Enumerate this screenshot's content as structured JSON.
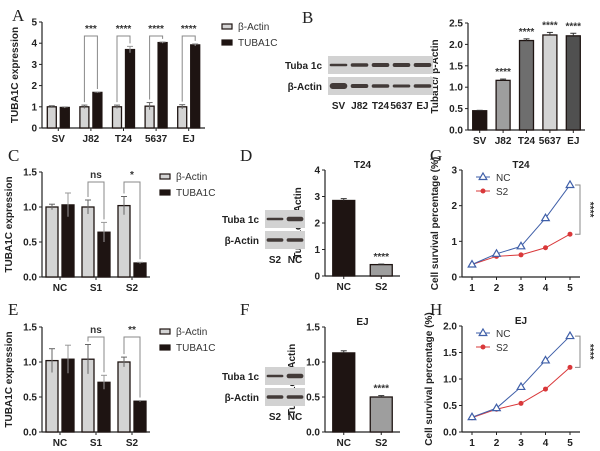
{
  "panel_labels": {
    "A": "A",
    "B": "B",
    "C": "C",
    "D": "D",
    "E": "E",
    "F": "F",
    "G": "G",
    "H": "H"
  },
  "colors": {
    "actin_fill": "#d4d4d4",
    "tuba_fill": "#1e1412",
    "nc_line": "#3f5fa8",
    "s2_line": "#d9383a",
    "dark_bar": "#1e1412",
    "mid_gray": "#9a9a9a"
  },
  "chart_data": [
    {
      "id": "A",
      "type": "bar",
      "title": "",
      "ylabel": "TUBA1C expression",
      "xlabel": "",
      "ylim": [
        0,
        5
      ],
      "yticks": [
        "0",
        "1",
        "2",
        "3",
        "4",
        "5"
      ],
      "categories": [
        "SV",
        "J82",
        "T24",
        "5637",
        "EJ"
      ],
      "series": [
        {
          "name": "β-Actin",
          "values": [
            1.0,
            1.0,
            1.0,
            1.03,
            1.0
          ],
          "errors": [
            0.05,
            0.08,
            0.08,
            0.17,
            0.1
          ]
        },
        {
          "name": "TUBA1C",
          "values": [
            0.97,
            1.68,
            3.7,
            4.03,
            3.92
          ],
          "errors": [
            0.03,
            0.02,
            0.15,
            0.03,
            0.05
          ]
        }
      ],
      "significance": [
        "",
        "***",
        "****",
        "****",
        "****"
      ],
      "legend": [
        "β-Actin",
        "TUBA1C"
      ],
      "legend_position": "right"
    },
    {
      "id": "B",
      "type": "bar",
      "title": "",
      "ylabel": "Tuba1c/ β-Actin",
      "xlabel": "",
      "ylim": [
        0,
        2.5
      ],
      "yticks": [
        "0.0",
        "0.5",
        "1.0",
        "1.5",
        "2.0",
        "2.5"
      ],
      "categories": [
        "SV",
        "J82",
        "T24",
        "5637",
        "EJ"
      ],
      "values": [
        0.45,
        1.16,
        2.09,
        2.22,
        2.2
      ],
      "errors": [
        0.01,
        0.03,
        0.04,
        0.06,
        0.06
      ],
      "bar_colors": [
        "#1e1412",
        "#9e9e9e",
        "#6e6e6e",
        "#d4d4d4",
        "#505050"
      ],
      "significance": [
        "",
        "****",
        "****",
        "****",
        "****"
      ]
    },
    {
      "id": "C",
      "type": "bar",
      "title": "",
      "ylabel": "TUBA1C expression",
      "xlabel": "",
      "ylim": [
        0,
        1.5
      ],
      "yticks": [
        "0.0",
        "0.5",
        "1.0",
        "1.5"
      ],
      "categories": [
        "NC",
        "S1",
        "S2"
      ],
      "series": [
        {
          "name": "β-Actin",
          "values": [
            1.0,
            1.0,
            1.02
          ],
          "errors": [
            0.04,
            0.1,
            0.13
          ]
        },
        {
          "name": "TUBA1C",
          "values": [
            1.03,
            0.64,
            0.2
          ],
          "errors": [
            0.17,
            0.14,
            0.01
          ]
        }
      ],
      "significance": [
        "",
        "ns",
        "*"
      ],
      "legend": [
        "β-Actin",
        "TUBA1C"
      ],
      "legend_position": "right"
    },
    {
      "id": "D",
      "type": "bar",
      "title": "T24",
      "ylabel": "Tuba1c/β-Actin",
      "xlabel": "",
      "ylim": [
        0,
        4
      ],
      "yticks": [
        "0",
        "1",
        "2",
        "3",
        "4"
      ],
      "categories": [
        "NC",
        "S2"
      ],
      "values": [
        2.85,
        0.43
      ],
      "errors": [
        0.07,
        0.02
      ],
      "bar_colors": [
        "#1e1412",
        "#9e9e9e"
      ],
      "significance": [
        "",
        "****"
      ]
    },
    {
      "id": "E",
      "type": "bar",
      "title": "",
      "ylabel": "TUBA1C expression",
      "xlabel": "",
      "ylim": [
        0,
        1.5
      ],
      "yticks": [
        "0.0",
        "0.5",
        "1.0",
        "1.5"
      ],
      "categories": [
        "NC",
        "S1",
        "S2"
      ],
      "series": [
        {
          "name": "β-Actin",
          "values": [
            1.02,
            1.04,
            1.0
          ],
          "errors": [
            0.17,
            0.21,
            0.07
          ]
        },
        {
          "name": "TUBA1C",
          "values": [
            1.04,
            0.71,
            0.44
          ],
          "errors": [
            0.2,
            0.1,
            0.01
          ]
        }
      ],
      "significance": [
        "",
        "ns",
        "**"
      ],
      "legend": [
        "β-Actin",
        "TUBA1C"
      ],
      "legend_position": "right"
    },
    {
      "id": "F",
      "type": "bar",
      "title": "EJ",
      "ylabel": "Tuba1c/β-Actin",
      "xlabel": "",
      "ylim": [
        0,
        1.5
      ],
      "yticks": [
        "0.0",
        "0.5",
        "1.0",
        "1.5"
      ],
      "categories": [
        "NC",
        "S2"
      ],
      "values": [
        1.13,
        0.5
      ],
      "errors": [
        0.03,
        0.02
      ],
      "bar_colors": [
        "#1e1412",
        "#9e9e9e"
      ],
      "significance": [
        "",
        "****"
      ]
    },
    {
      "id": "G",
      "type": "line",
      "title": "T24",
      "ylabel": "Cell survival percentage (%)",
      "xlabel": "",
      "ylim": [
        0,
        3
      ],
      "yticks": [
        "0",
        "1",
        "2",
        "3"
      ],
      "x": [
        1,
        2,
        3,
        4,
        5
      ],
      "series": [
        {
          "name": "NC",
          "values": [
            0.35,
            0.65,
            0.86,
            1.65,
            2.58
          ],
          "marker": "triangle"
        },
        {
          "name": "S2",
          "values": [
            0.35,
            0.58,
            0.62,
            0.82,
            1.2
          ],
          "marker": "circle"
        }
      ],
      "significance": "****",
      "legend": [
        "NC",
        "S2"
      ],
      "legend_position": "top-left"
    },
    {
      "id": "H",
      "type": "line",
      "title": "EJ",
      "ylabel": "Cell survival percentage (%)",
      "xlabel": "",
      "ylim": [
        0,
        2
      ],
      "yticks": [
        "0.0",
        "0.5",
        "1.0",
        "1.5",
        "2.0"
      ],
      "x": [
        1,
        2,
        3,
        4,
        5
      ],
      "series": [
        {
          "name": "NC",
          "values": [
            0.28,
            0.45,
            0.85,
            1.35,
            1.81
          ],
          "marker": "triangle"
        },
        {
          "name": "S2",
          "values": [
            0.27,
            0.43,
            0.54,
            0.81,
            1.22
          ],
          "marker": "circle"
        }
      ],
      "significance": "****",
      "legend": [
        "NC",
        "S2"
      ],
      "legend_position": "top-left"
    }
  ],
  "blots": {
    "B": {
      "rows": [
        "Tuba 1c",
        "β-Actin"
      ],
      "lanes": [
        "SV",
        "J82",
        "T24",
        "5637",
        "EJ"
      ]
    },
    "D": {
      "rows": [
        "Tuba 1c",
        "β-Actin"
      ],
      "lanes": [
        "S2",
        "NC"
      ]
    },
    "F": {
      "rows": [
        "Tuba 1c",
        "β-Actin"
      ],
      "lanes": [
        "S2",
        "NC"
      ]
    }
  }
}
